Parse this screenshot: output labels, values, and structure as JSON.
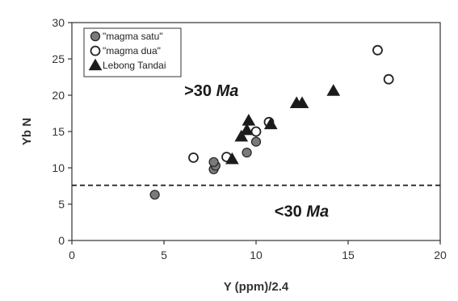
{
  "chart_data": {
    "type": "scatter",
    "xlabel": "Y (ppm)/2.4",
    "ylabel": "Yb N",
    "xlim": [
      0,
      20
    ],
    "ylim": [
      0,
      30
    ],
    "xticks": [
      "0",
      "5",
      "10",
      "15",
      "20"
    ],
    "yticks": [
      "0",
      "5",
      "10",
      "15",
      "20",
      "25",
      "30"
    ],
    "grid": false,
    "legend_position": "top-left",
    "series": [
      {
        "name": "\"magma satu\"",
        "marker": "filled-circle",
        "color": "#7a7a7a",
        "points": [
          {
            "x": 4.5,
            "y": 6.3
          },
          {
            "x": 7.7,
            "y": 9.8
          },
          {
            "x": 7.8,
            "y": 10.3
          },
          {
            "x": 7.7,
            "y": 10.8
          },
          {
            "x": 9.5,
            "y": 12.1
          },
          {
            "x": 10.0,
            "y": 13.6
          }
        ]
      },
      {
        "name": "\"magma dua\"",
        "marker": "open-circle",
        "color": "#ffffff",
        "points": [
          {
            "x": 6.6,
            "y": 11.4
          },
          {
            "x": 8.4,
            "y": 11.5
          },
          {
            "x": 10.0,
            "y": 15.0
          },
          {
            "x": 10.7,
            "y": 16.3
          },
          {
            "x": 16.6,
            "y": 26.2
          },
          {
            "x": 17.2,
            "y": 22.2
          }
        ]
      },
      {
        "name": "Lebong Tandai",
        "marker": "filled-triangle",
        "color": "#1a1a1a",
        "points": [
          {
            "x": 8.7,
            "y": 11.2
          },
          {
            "x": 9.2,
            "y": 14.3
          },
          {
            "x": 9.5,
            "y": 15.2
          },
          {
            "x": 9.6,
            "y": 16.5
          },
          {
            "x": 10.8,
            "y": 16.0
          },
          {
            "x": 12.2,
            "y": 18.9
          },
          {
            "x": 12.5,
            "y": 18.9
          },
          {
            "x": 14.2,
            "y": 20.6
          }
        ]
      }
    ],
    "reference_line": {
      "style": "dashed",
      "y": 7.6
    },
    "annotations": {
      "upper": {
        "text": ">30 ",
        "unit": "Ma",
        "x": 6.1,
        "y": 19.9
      },
      "lower": {
        "text": "<30 ",
        "unit": "Ma",
        "x": 11.0,
        "y": 3.3
      }
    }
  },
  "colors": {
    "frame": "#333333",
    "marker_outline": "#222222"
  }
}
